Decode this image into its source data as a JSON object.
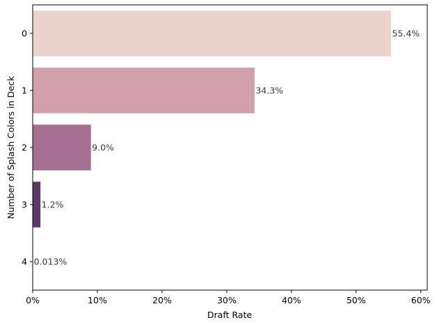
{
  "chart_data": {
    "type": "bar",
    "orientation": "horizontal",
    "title": "",
    "xlabel": "Draft Rate",
    "ylabel": "Number of Splash Colors in Deck",
    "categories": [
      "0",
      "1",
      "2",
      "3",
      "4"
    ],
    "values": [
      55.4,
      34.3,
      9.0,
      1.2,
      0.013
    ],
    "value_labels": [
      "55.4%",
      "34.3%",
      "9.0%",
      "1.2%",
      "0.013%"
    ],
    "xlim": [
      0,
      61
    ],
    "xticks": [
      0,
      10,
      20,
      30,
      40,
      50,
      60
    ],
    "xtick_labels": [
      "0%",
      "10%",
      "20%",
      "30%",
      "40%",
      "50%",
      "60%"
    ],
    "grid": false,
    "colors": [
      "#ebd3ce",
      "#d09fa9",
      "#a46f91",
      "#5e3a69",
      "#2d1e3e"
    ]
  }
}
